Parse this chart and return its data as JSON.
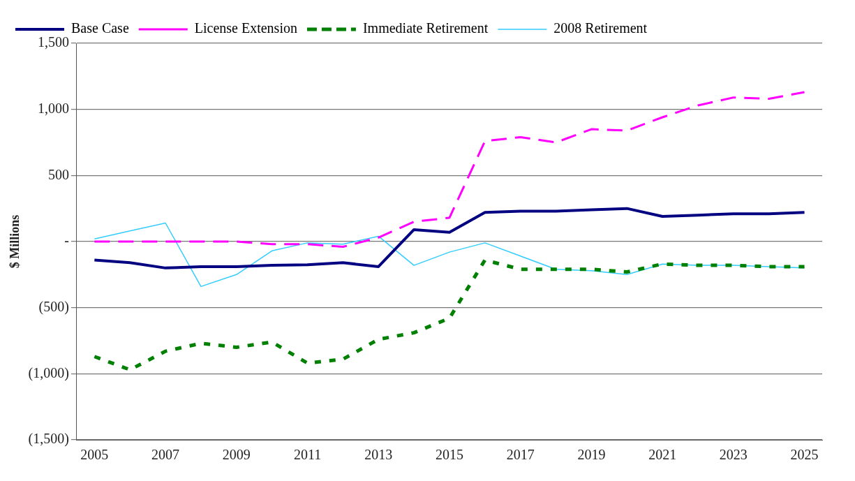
{
  "chart_data": {
    "type": "line",
    "ylabel": "$ Millions",
    "categories": [
      "2005",
      null,
      "2007",
      null,
      "2009",
      null,
      "2011",
      null,
      "2013",
      null,
      "2015",
      null,
      "2017",
      null,
      "2019",
      null,
      "2021",
      null,
      "2023",
      null,
      "2025"
    ],
    "series": [
      {
        "name": "Base Case",
        "color": "#000080",
        "line_style": "solid",
        "values": [
          -140,
          -160,
          -200,
          -190,
          -190,
          -180,
          -175,
          -160,
          -190,
          90,
          70,
          220,
          230,
          230,
          240,
          250,
          190,
          200,
          210,
          210,
          220
        ]
      },
      {
        "name": "License Extension",
        "color": "#ff00ff",
        "line_style": "dashed",
        "values": [
          0,
          0,
          0,
          0,
          0,
          -20,
          -20,
          -40,
          30,
          150,
          180,
          760,
          790,
          750,
          850,
          840,
          940,
          1030,
          1090,
          1080,
          1130
        ]
      },
      {
        "name": "Immediate Retirement",
        "color": "#008000",
        "line_style": "dotted",
        "values": [
          -870,
          -970,
          -830,
          -770,
          -800,
          -760,
          -920,
          -890,
          -740,
          -690,
          -580,
          -140,
          -210,
          -210,
          -210,
          -230,
          -170,
          -180,
          -180,
          -190,
          -190
        ]
      },
      {
        "name": "2008 Retirement",
        "color": "#33ccff",
        "line_style": "solid",
        "values": [
          20,
          80,
          140,
          -340,
          -250,
          -70,
          -10,
          -20,
          40,
          -180,
          -80,
          -10,
          -110,
          -210,
          -220,
          -250,
          -170,
          -180,
          -180,
          -190,
          -200
        ]
      }
    ],
    "ylim": [
      -1500,
      1500
    ],
    "yticks": [
      {
        "value": 1500,
        "label": "1,500"
      },
      {
        "value": 1000,
        "label": "1,000"
      },
      {
        "value": 500,
        "label": "500"
      },
      {
        "value": 0,
        "label": "-"
      },
      {
        "value": -500,
        "label": "(500)"
      },
      {
        "value": -1000,
        "label": "(1,000)"
      },
      {
        "value": -1500,
        "label": "(1,500)"
      }
    ],
    "grid": "y",
    "legend": "top left",
    "marker": "none"
  }
}
